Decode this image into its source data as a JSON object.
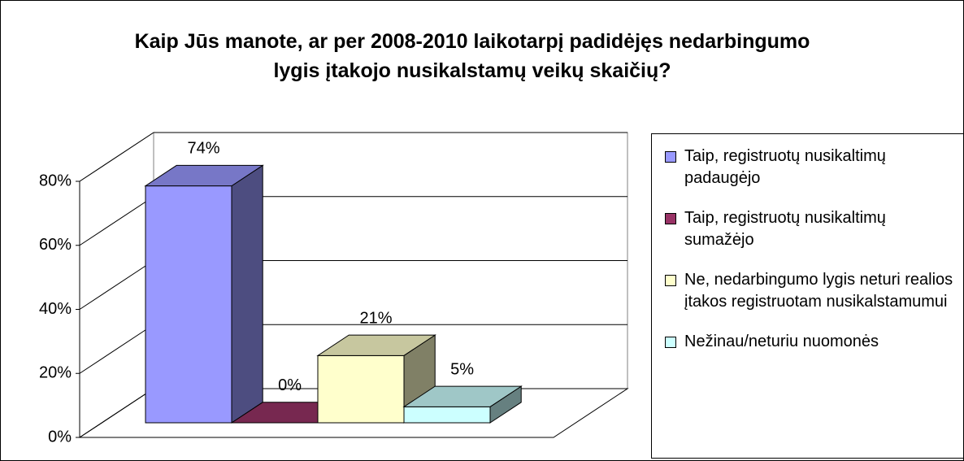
{
  "chart_data": {
    "type": "bar",
    "title": "Kaip Jūs manote, ar per 2008-2010 laikotarpį padidėjęs nedarbingumo lygis įtakojo nusikalstamų veikų skaičių?",
    "series": [
      {
        "name": "Taip, registruotų nusikaltimų padaugėjo",
        "color": "#9999ff",
        "values": [
          74
        ],
        "value_labels": [
          "74%"
        ]
      },
      {
        "name": "Taip, registruotų nusikaltimų sumažėjo",
        "color": "#993366",
        "values": [
          0
        ],
        "value_labels": [
          "0%"
        ]
      },
      {
        "name": "Ne, nedarbingumo lygis neturi realios įtakos registruotam nusikalstamumui",
        "color": "#ffffcc",
        "values": [
          21
        ],
        "value_labels": [
          "21%"
        ]
      },
      {
        "name": "Nežinau/neturiu nuomonės",
        "color": "#ccffff",
        "values": [
          5
        ],
        "value_labels": [
          "5%"
        ]
      }
    ],
    "ylim": [
      0,
      80
    ],
    "yticks": [
      {
        "value": 0,
        "label": "0%"
      },
      {
        "value": 20,
        "label": "20%"
      },
      {
        "value": 40,
        "label": "40%"
      },
      {
        "value": 60,
        "label": "60%"
      },
      {
        "value": 80,
        "label": "80%"
      }
    ],
    "grid": true
  }
}
